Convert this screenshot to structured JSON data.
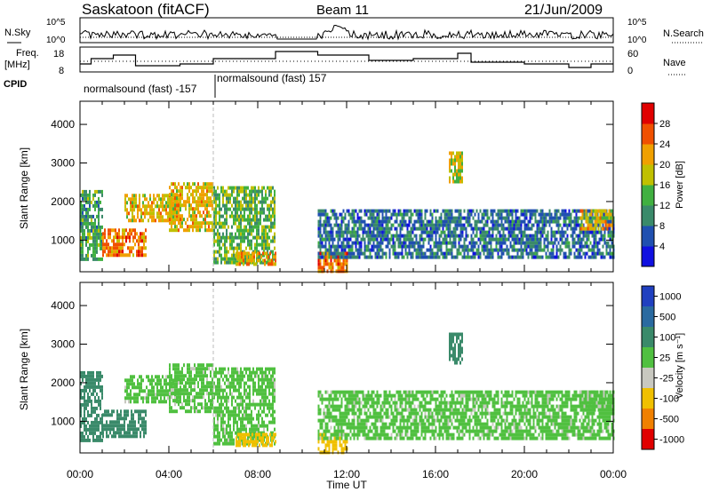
{
  "header": {
    "site": "Saskatoon (fitACF)",
    "beam": "Beam 11",
    "date": "21/Jun/2009"
  },
  "top_panel": {
    "left_label": "N.Sky",
    "right_label": "N.Search",
    "left_ticks": [
      "10^5",
      "10^0"
    ],
    "right_ticks": [
      "10^5",
      "10^0"
    ]
  },
  "freq_panel": {
    "left_label_1": "Freq.",
    "left_label_2": "[MHz]",
    "right_label": "Nave",
    "left_ticks": [
      "18",
      "8"
    ],
    "right_ticks": [
      "60",
      "0"
    ]
  },
  "cpid": {
    "label": "CPID",
    "entries": [
      {
        "text": "normalsound (fast) -157"
      },
      {
        "text": "normalsound (fast) 157"
      }
    ]
  },
  "axes": {
    "ylabel": "Slant Range [km]",
    "xlabel": "Time UT",
    "y_ticks": [
      "4000",
      "3000",
      "2000",
      "1000"
    ],
    "x_ticks": [
      "00:00",
      "04:00",
      "08:00",
      "12:00",
      "16:00",
      "20:00",
      "00:00"
    ]
  },
  "power_scale": {
    "label": "Power [dB]",
    "ticks": [
      "28",
      "24",
      "20",
      "16",
      "12",
      "8",
      "4"
    ],
    "colors": [
      "#1010e0",
      "#2050b0",
      "#3a8a6a",
      "#40b040",
      "#c0c000",
      "#f0a000",
      "#f05000",
      "#e00000"
    ]
  },
  "velocity_scale": {
    "label": "Velocity [m s⁻¹]",
    "ticks": [
      "1000",
      "500",
      "100",
      "25",
      "-25",
      "-100",
      "-500",
      "-1000"
    ],
    "colors": [
      "#2040c0",
      "#2a6aa0",
      "#3a8a6a",
      "#50c040",
      "#c8c8c0",
      "#f0c000",
      "#f08000",
      "#e00000"
    ]
  },
  "chart_data": {
    "type": "heatmap",
    "title": "Saskatoon (fitACF) Beam 11 21/Jun/2009",
    "xlabel": "Time UT",
    "ylabel": "Slant Range [km]",
    "xlim": [
      "00:00",
      "24:00"
    ],
    "ylim": [
      180,
      4600
    ],
    "panels": [
      "Power [dB]",
      "Velocity [m s-1]"
    ],
    "regions_hours_km": [
      {
        "t": [
          0.0,
          1.0
        ],
        "r": [
          500,
          2300
        ],
        "power": 14,
        "velocity": 100
      },
      {
        "t": [
          1.0,
          3.0
        ],
        "r": [
          600,
          1300
        ],
        "power": 26,
        "velocity": 100
      },
      {
        "t": [
          2.0,
          4.5
        ],
        "r": [
          1500,
          2200
        ],
        "power": 22,
        "velocity": 25
      },
      {
        "t": [
          4.0,
          6.0
        ],
        "r": [
          1300,
          2500
        ],
        "power": 22,
        "velocity": 25
      },
      {
        "t": [
          6.0,
          8.8
        ],
        "r": [
          400,
          2400
        ],
        "power": 16,
        "velocity": 25
      },
      {
        "t": [
          7.0,
          8.8
        ],
        "r": [
          400,
          700
        ],
        "power": 24,
        "velocity": -100
      },
      {
        "t": [
          10.7,
          12.0
        ],
        "r": [
          180,
          700
        ],
        "power": 26,
        "velocity": -100
      },
      {
        "t": [
          10.7,
          24.0
        ],
        "r": [
          600,
          1800
        ],
        "power": 10,
        "velocity": 25
      },
      {
        "t": [
          16.6,
          17.2
        ],
        "r": [
          2500,
          3300
        ],
        "power": 20,
        "velocity": 100
      },
      {
        "t": [
          22.5,
          24.0
        ],
        "r": [
          1300,
          1800
        ],
        "power": 22,
        "velocity": 25
      }
    ],
    "no_data_hours": [
      [
        8.8,
        10.7
      ]
    ]
  }
}
